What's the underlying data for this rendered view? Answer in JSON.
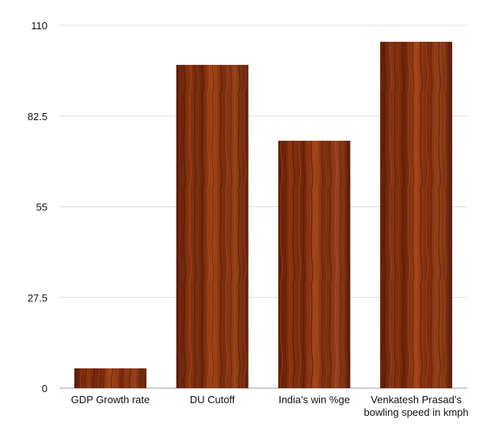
{
  "chart_data": {
    "type": "bar",
    "title": "",
    "xlabel": "",
    "ylabel": "",
    "categories": [
      [
        "GDP Growth rate"
      ],
      [
        "DU Cutoff"
      ],
      [
        "India’s win %ge"
      ],
      [
        "Venkatesh Prasad’s",
        "bowling speed in kmph"
      ]
    ],
    "values": [
      6,
      98,
      75,
      105
    ],
    "ylim": [
      0,
      110
    ],
    "yticks": [
      0,
      27.5,
      55,
      82.5,
      110
    ],
    "ytick_labels": [
      "0",
      "27.5",
      "55",
      "82.5",
      "110"
    ],
    "grid": true,
    "legend": "none",
    "bar_fill": "wood grain",
    "colors": {
      "bar_dark": "#4a1705",
      "bar_mid": "#8c3411",
      "bar_light": "#b5521f",
      "grid": "#dcdcdc"
    }
  }
}
